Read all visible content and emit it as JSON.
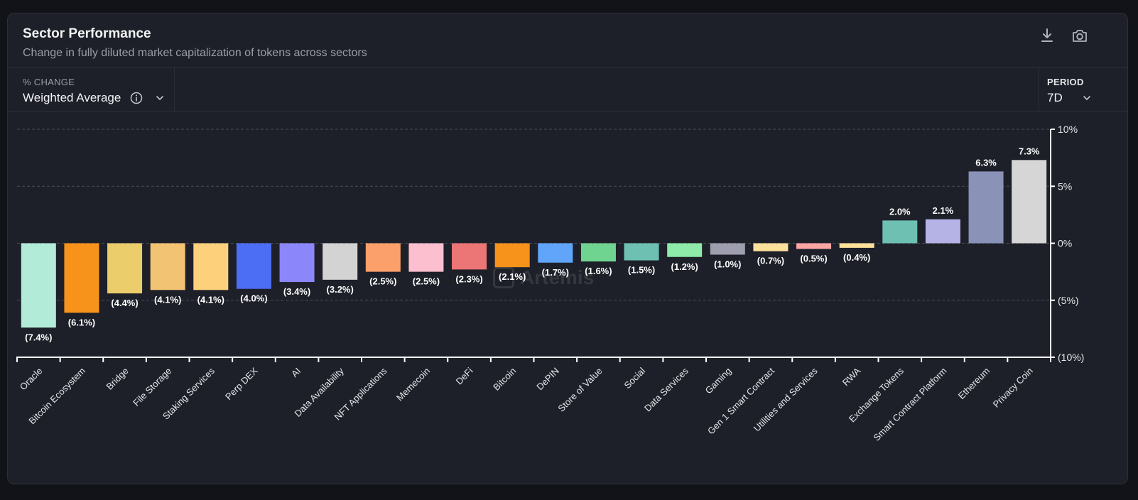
{
  "header": {
    "title": "Sector Performance",
    "subtitle": "Change in fully diluted market capitalization of tokens across sectors",
    "download_icon": "download-icon",
    "camera_icon": "camera-icon"
  },
  "controls": {
    "change_label": "% CHANGE",
    "change_value": "Weighted Average",
    "info_icon": "info-icon",
    "period_label": "PERIOD",
    "period_value": "7D"
  },
  "watermark": "Artemis",
  "colors": {
    "background": "#1e2029",
    "grid": "#4a4d58",
    "axis": "#ffffff"
  },
  "chart_data": {
    "type": "bar",
    "title": "",
    "xlabel": "",
    "ylabel": "",
    "ylim": [
      -10,
      10
    ],
    "yticks": [
      10,
      5,
      0,
      -5,
      -10
    ],
    "ytick_labels": [
      "10%",
      "5%",
      "0%",
      "(5%)",
      "(10%)"
    ],
    "categories": [
      "Oracle",
      "Bitcoin Ecosystem",
      "Bridge",
      "File Storage",
      "Staking Services",
      "Perp DEX",
      "AI",
      "Data Availability",
      "NFT Applications",
      "Memecoin",
      "DeFi",
      "Bitcoin",
      "DePIN",
      "Store of Value",
      "Social",
      "Data Services",
      "Gaming",
      "Gen 1 Smart Contract",
      "Utilities and Services",
      "RWA",
      "Exchange Tokens",
      "Smart Contract Platform",
      "Ethereum",
      "Privacy Coin"
    ],
    "values": [
      -7.4,
      -6.1,
      -4.4,
      -4.1,
      -4.1,
      -4.0,
      -3.4,
      -3.2,
      -2.5,
      -2.5,
      -2.3,
      -2.1,
      -1.7,
      -1.6,
      -1.5,
      -1.2,
      -1.0,
      -0.7,
      -0.5,
      -0.4,
      2.0,
      2.1,
      6.3,
      7.3
    ],
    "value_labels": [
      "(7.4%)",
      "(6.1%)",
      "(4.4%)",
      "(4.1%)",
      "(4.1%)",
      "(4.0%)",
      "(3.4%)",
      "(3.2%)",
      "(2.5%)",
      "(2.5%)",
      "(2.3%)",
      "(2.1%)",
      "(1.7%)",
      "(1.6%)",
      "(1.5%)",
      "(1.2%)",
      "(1.0%)",
      "(0.7%)",
      "(0.5%)",
      "(0.4%)",
      "2.0%",
      "2.1%",
      "6.3%",
      "7.3%"
    ],
    "colors": [
      "#b3ebd9",
      "#f7931a",
      "#eccd6c",
      "#f3c374",
      "#fdd07b",
      "#4c6ef5",
      "#8b87fb",
      "#d3d3d3",
      "#fca06b",
      "#fbbfd0",
      "#ec7575",
      "#f7931a",
      "#60a5fa",
      "#6fd48f",
      "#6ec1b2",
      "#8eeaa8",
      "#9e9eae",
      "#fde09a",
      "#fca5a5",
      "#fde09a",
      "#6ec1b2",
      "#b5b3e6",
      "#8a92b8",
      "#d6d6d6"
    ],
    "grid": true
  }
}
